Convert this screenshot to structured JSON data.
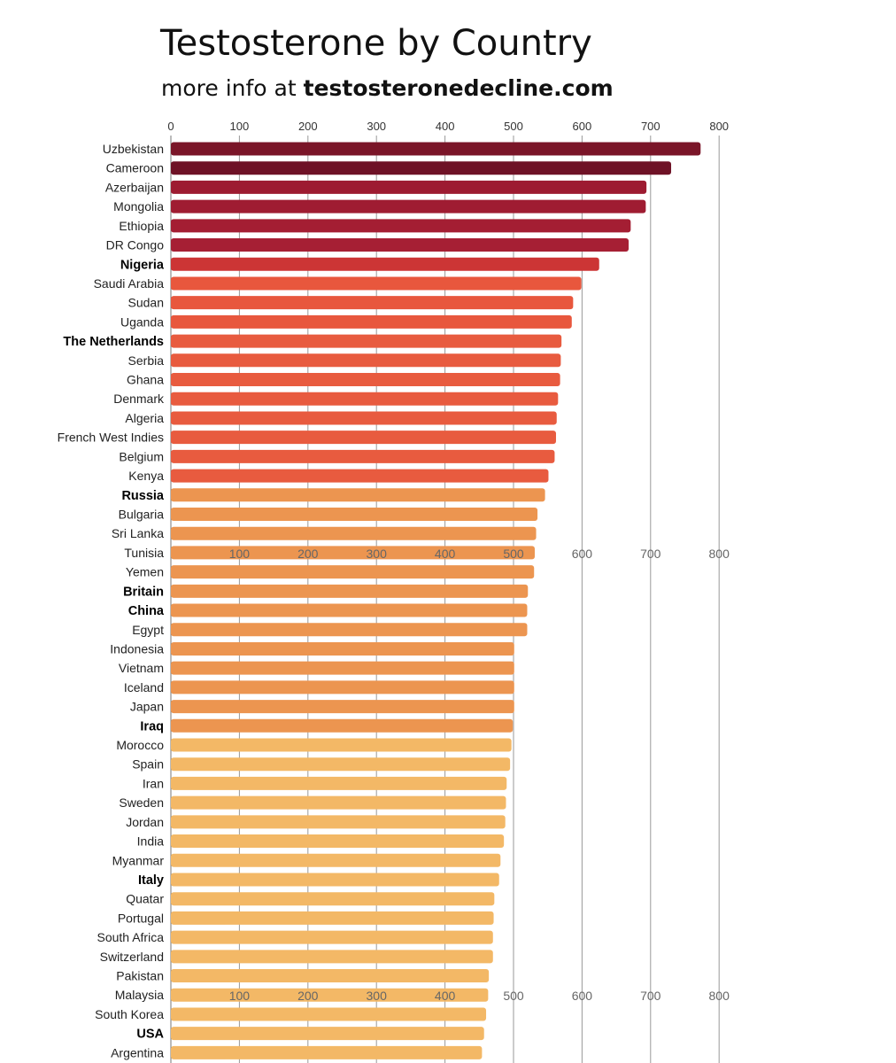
{
  "chart_data": {
    "type": "bar",
    "orientation": "horizontal",
    "title": "Testosterone by Country",
    "subtitle_prefix": "more info at ",
    "subtitle_link": "testosteronedecline.com",
    "xlim": [
      0,
      800
    ],
    "x_ticks": [
      0,
      100,
      200,
      300,
      400,
      500,
      600,
      700,
      800
    ],
    "ghost_ticks": [
      100,
      200,
      300,
      400,
      500,
      600,
      700,
      800
    ],
    "grid": true,
    "categories": [
      {
        "name": "Uzbekistan",
        "value": 773,
        "color": "#7a1528",
        "bold": false
      },
      {
        "name": "Cameroon",
        "value": 730,
        "color": "#6e1226",
        "bold": false
      },
      {
        "name": "Azerbaijan",
        "value": 694,
        "color": "#9d1b31",
        "bold": false
      },
      {
        "name": "Mongolia",
        "value": 693,
        "color": "#9f1c32",
        "bold": false
      },
      {
        "name": "Ethiopia",
        "value": 671,
        "color": "#a41e33",
        "bold": false
      },
      {
        "name": "DR Congo",
        "value": 668,
        "color": "#a61f34",
        "bold": false
      },
      {
        "name": "Nigeria",
        "value": 625,
        "color": "#cc3535",
        "bold": true
      },
      {
        "name": "Saudi Arabia",
        "value": 599,
        "color": "#e8573d",
        "bold": false
      },
      {
        "name": "Sudan",
        "value": 587,
        "color": "#e8573d",
        "bold": false
      },
      {
        "name": "Uganda",
        "value": 585,
        "color": "#e8573d",
        "bold": false
      },
      {
        "name": "The Netherlands",
        "value": 570,
        "color": "#e85b3f",
        "bold": true
      },
      {
        "name": "Serbia",
        "value": 569,
        "color": "#e85b3f",
        "bold": false
      },
      {
        "name": "Ghana",
        "value": 568,
        "color": "#e85b3f",
        "bold": false
      },
      {
        "name": "Denmark",
        "value": 565,
        "color": "#e85b3f",
        "bold": false
      },
      {
        "name": "Algeria",
        "value": 563,
        "color": "#e85b3f",
        "bold": false
      },
      {
        "name": "French West Indies",
        "value": 562,
        "color": "#e85b3f",
        "bold": false
      },
      {
        "name": "Belgium",
        "value": 560,
        "color": "#e85b3f",
        "bold": false
      },
      {
        "name": "Kenya",
        "value": 551,
        "color": "#e85b3f",
        "bold": false
      },
      {
        "name": "Russia",
        "value": 546,
        "color": "#ec9550",
        "bold": true
      },
      {
        "name": "Bulgaria",
        "value": 535,
        "color": "#ec9550",
        "bold": false
      },
      {
        "name": "Sri Lanka",
        "value": 533,
        "color": "#ec9550",
        "bold": false
      },
      {
        "name": "Tunisia",
        "value": 531,
        "color": "#ec9550",
        "bold": false
      },
      {
        "name": "Yemen",
        "value": 530,
        "color": "#ec9550",
        "bold": false
      },
      {
        "name": "Britain",
        "value": 521,
        "color": "#ec9550",
        "bold": true
      },
      {
        "name": "China",
        "value": 520,
        "color": "#ec9550",
        "bold": true
      },
      {
        "name": "Egypt",
        "value": 520,
        "color": "#ec9550",
        "bold": false
      },
      {
        "name": "Indonesia",
        "value": 501,
        "color": "#ec9550",
        "bold": false
      },
      {
        "name": "Vietnam",
        "value": 501,
        "color": "#ec9550",
        "bold": false
      },
      {
        "name": "Iceland",
        "value": 501,
        "color": "#ec9550",
        "bold": false
      },
      {
        "name": "Japan",
        "value": 501,
        "color": "#ec9550",
        "bold": false
      },
      {
        "name": "Iraq",
        "value": 499,
        "color": "#ec9550",
        "bold": true
      },
      {
        "name": "Morocco",
        "value": 497,
        "color": "#f3b866",
        "bold": false
      },
      {
        "name": "Spain",
        "value": 495,
        "color": "#f3b866",
        "bold": false
      },
      {
        "name": "Iran",
        "value": 490,
        "color": "#f3b866",
        "bold": false
      },
      {
        "name": "Sweden",
        "value": 489,
        "color": "#f3b866",
        "bold": false
      },
      {
        "name": "Jordan",
        "value": 488,
        "color": "#f3b866",
        "bold": false
      },
      {
        "name": "India",
        "value": 486,
        "color": "#f3b866",
        "bold": false
      },
      {
        "name": "Myanmar",
        "value": 481,
        "color": "#f3b866",
        "bold": false
      },
      {
        "name": "Italy",
        "value": 479,
        "color": "#f3b866",
        "bold": true
      },
      {
        "name": "Quatar",
        "value": 472,
        "color": "#f3b866",
        "bold": false
      },
      {
        "name": "Portugal",
        "value": 471,
        "color": "#f3b866",
        "bold": false
      },
      {
        "name": "South Africa",
        "value": 470,
        "color": "#f3b866",
        "bold": false
      },
      {
        "name": "Switzerland",
        "value": 470,
        "color": "#f3b866",
        "bold": false
      },
      {
        "name": "Pakistan",
        "value": 464,
        "color": "#f3b866",
        "bold": false
      },
      {
        "name": "Malaysia",
        "value": 463,
        "color": "#f3b866",
        "bold": false
      },
      {
        "name": "South Korea",
        "value": 460,
        "color": "#f3b866",
        "bold": false
      },
      {
        "name": "USA",
        "value": 457,
        "color": "#f3b866",
        "bold": true
      },
      {
        "name": "Argentina",
        "value": 454,
        "color": "#f3b866",
        "bold": false
      }
    ]
  }
}
